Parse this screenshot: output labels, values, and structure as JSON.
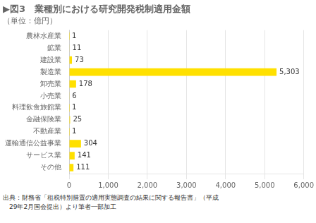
{
  "chart_data": {
    "type": "bar",
    "orientation": "horizontal",
    "title": "▶図3　業種別における研究開発税制適用金額",
    "subtitle": "（単位：億円）",
    "categories": [
      "農林水産業",
      "鉱業",
      "建設業",
      "製造業",
      "卸売業",
      "小売業",
      "料理飲食旅館業",
      "金融保険業",
      "不動産業",
      "運輸通信公益事業",
      "サービス業",
      "その他"
    ],
    "values": [
      1,
      11,
      73,
      5303,
      178,
      6,
      1,
      25,
      1,
      304,
      141,
      111
    ],
    "value_labels": [
      "1",
      "11",
      "73",
      "5,303",
      "178",
      "6",
      "1",
      "25",
      "1",
      "304",
      "141",
      "111"
    ],
    "data_labels": true,
    "color": "#FFE000",
    "xlim": [
      0,
      6000
    ],
    "xticks": [
      0,
      {
        "value": 1000,
        "label": "1,000"
      },
      {
        "value": 2000,
        "label": "2,000"
      },
      {
        "value": 3000,
        "label": "3,000"
      },
      {
        "value": 4000,
        "label": "4,000"
      },
      {
        "value": 5000,
        "label": "5,000"
      },
      {
        "value": 6000,
        "label": "6,000"
      }
    ],
    "grid": true,
    "annotations": [
      "出典：財務省「租税特別措置の適用実態調査の結果に関する報告書」（平成",
      "　29年2月国会提出）より筆者一部加工"
    ]
  }
}
